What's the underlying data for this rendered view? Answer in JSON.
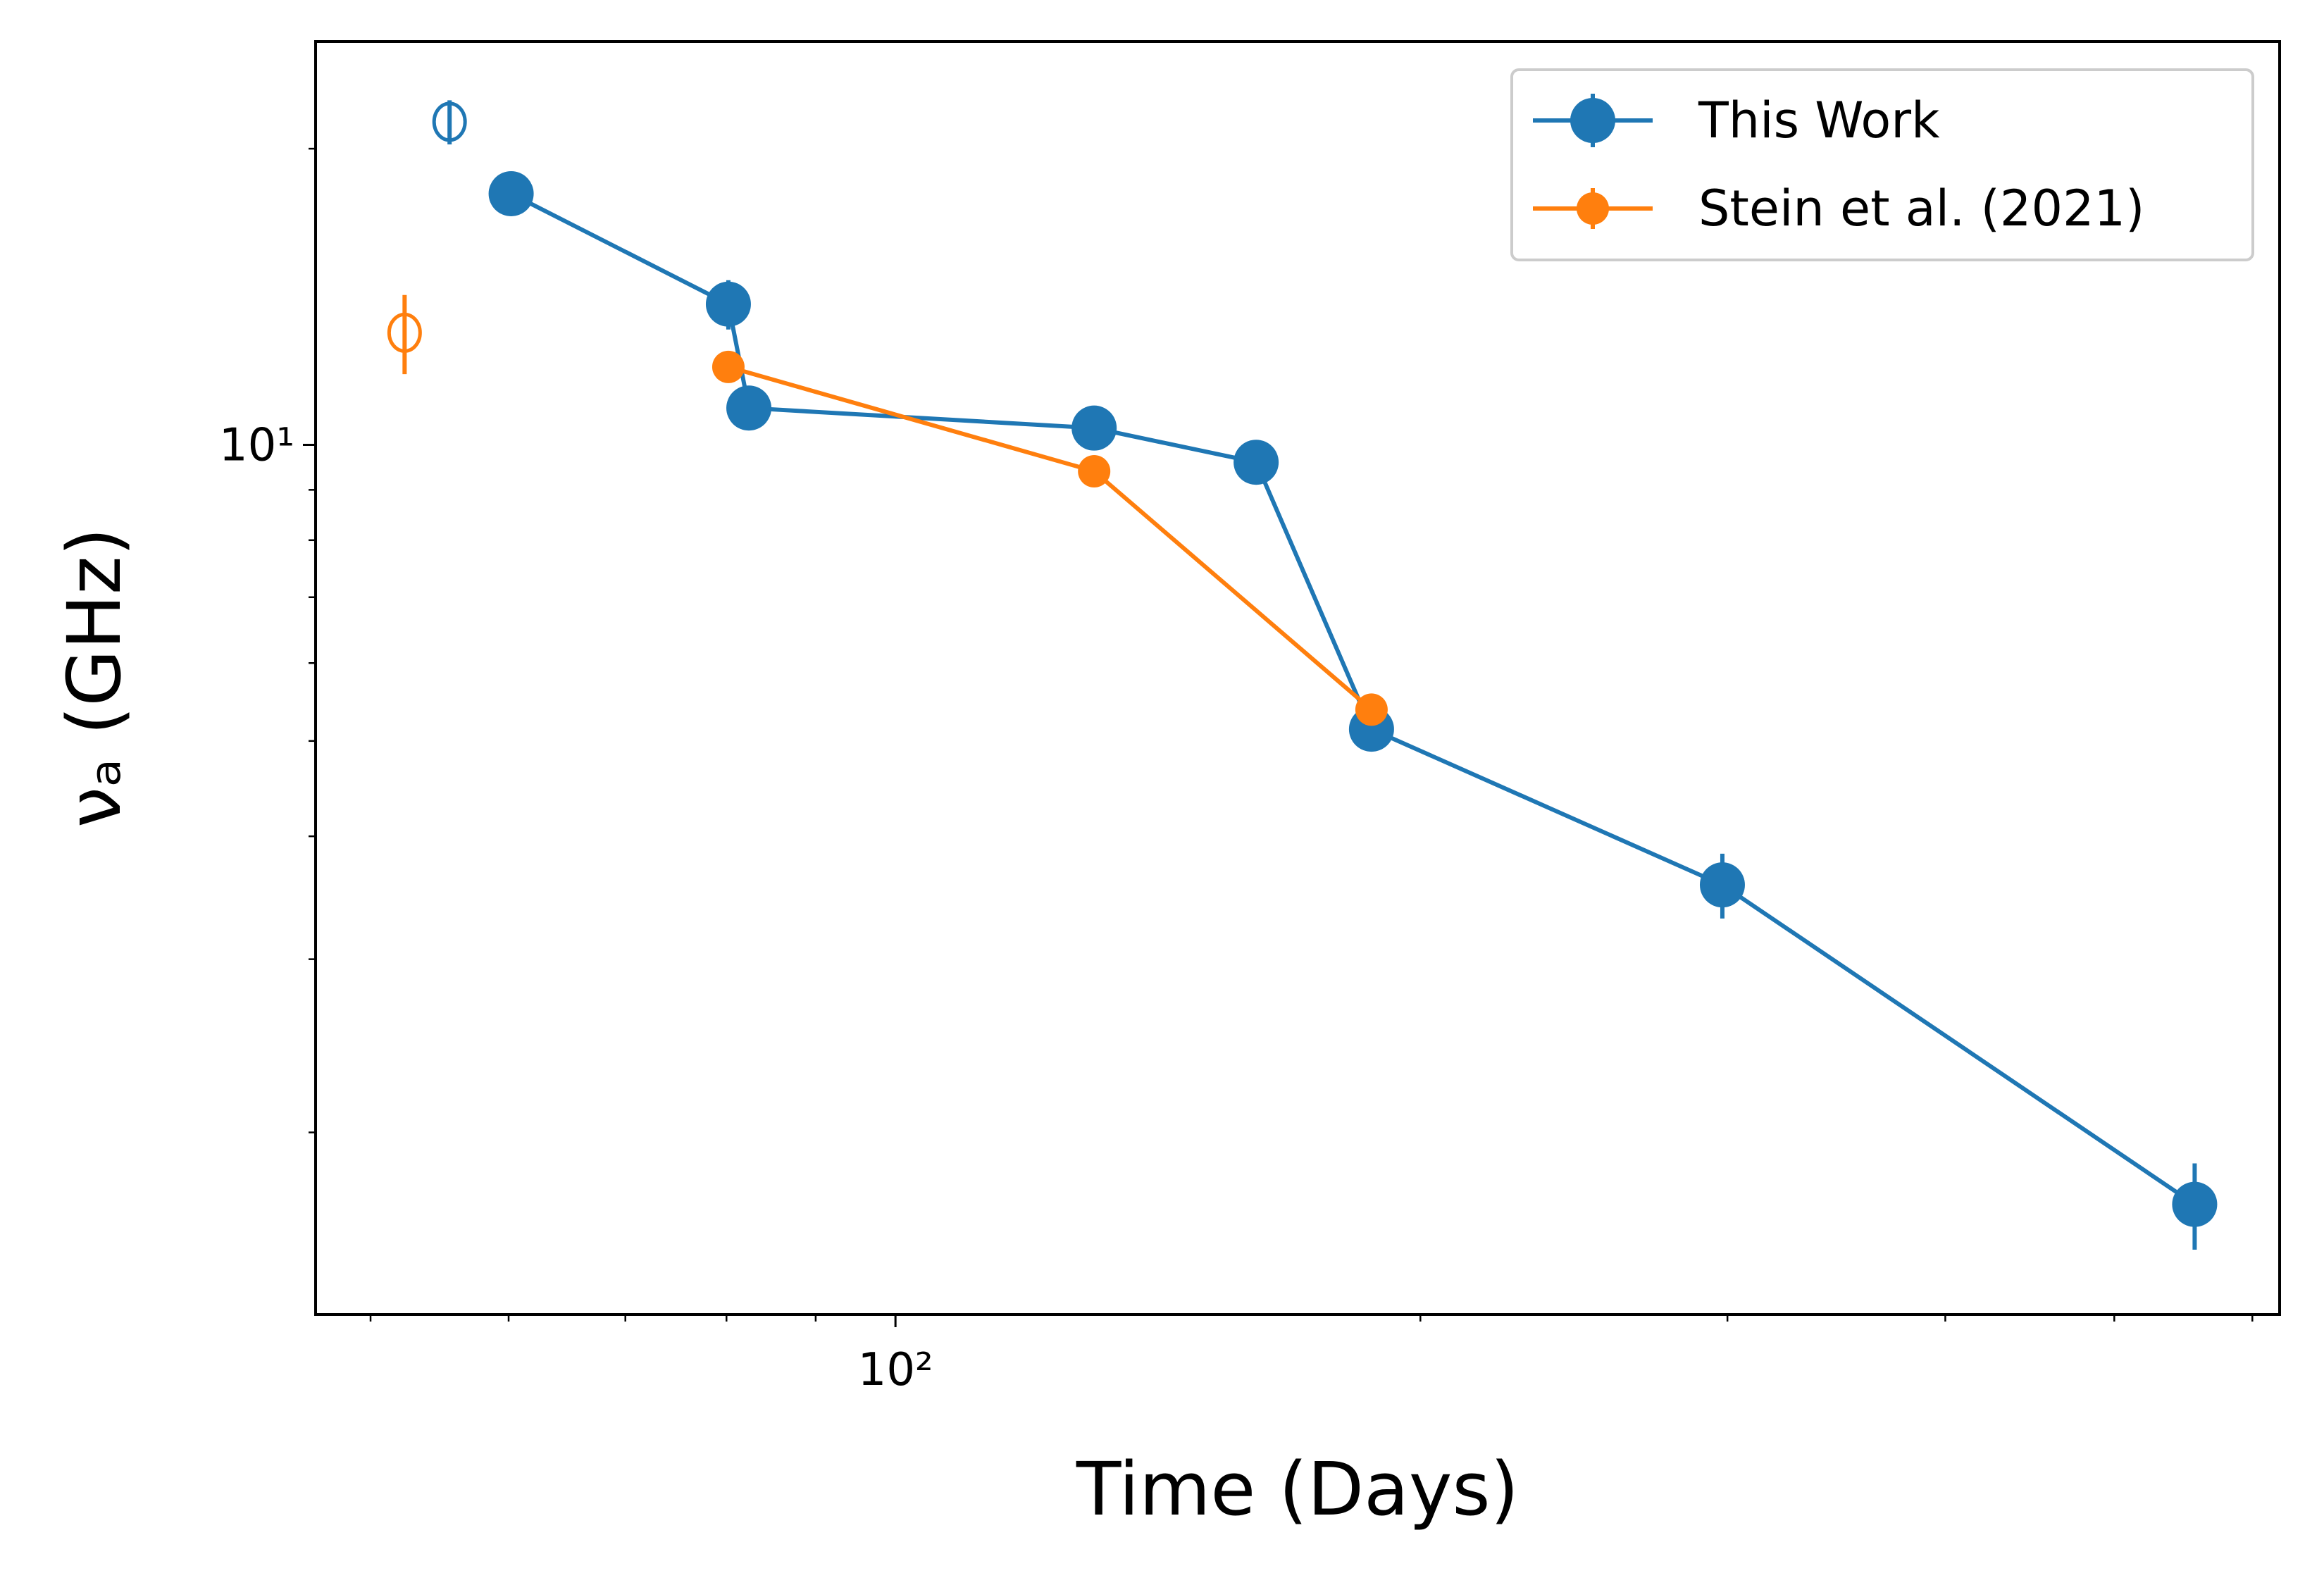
{
  "chart_data": {
    "type": "line",
    "xlabel": "Time (Days)",
    "ylabel": "νₐ (GHz)",
    "xscale": "log",
    "yscale": "log",
    "xlim": [
      46.5,
      622
    ],
    "ylim": [
      1.306,
      25.7
    ],
    "xticks": [
      {
        "value": 100,
        "label": "10²"
      }
    ],
    "xminorticks": [
      50,
      60,
      70,
      80,
      90,
      200,
      300,
      400,
      500,
      600
    ],
    "yticks": [
      {
        "value": 10,
        "label": "10¹"
      }
    ],
    "yminorticks": [
      2,
      3,
      4,
      5,
      6,
      7,
      8,
      9,
      20
    ],
    "legend": "upper right",
    "series": [
      {
        "name": "This Work",
        "color": "#1f77b4",
        "marker": "filled",
        "x": [
          60.2,
          80.2,
          82.4,
          130,
          161,
          187.5,
          298,
          556
        ],
        "values": [
          18.0,
          13.9,
          10.9,
          10.4,
          9.6,
          5.14,
          3.57,
          1.69
        ],
        "errors": [
          0.3,
          0.8,
          0.3,
          0.3,
          0.3,
          0.2,
          0.27,
          0.17
        ]
      },
      {
        "name": "Stein et al. (2021)",
        "color": "#ff7f0e",
        "marker": "filled",
        "x": [
          80.2,
          130,
          187.5
        ],
        "values": [
          12.0,
          9.4,
          5.38
        ],
        "errors": [
          0.2,
          0.2,
          0.1
        ]
      },
      {
        "color": "#1f77b4",
        "marker": "open",
        "x": [
          55.5
        ],
        "values": [
          21.3
        ],
        "errors": [
          1.1
        ]
      },
      {
        "color": "#ff7f0e",
        "marker": "open",
        "x": [
          52.3
        ],
        "values": [
          13.0
        ],
        "errors": [
          1.2
        ]
      }
    ]
  }
}
